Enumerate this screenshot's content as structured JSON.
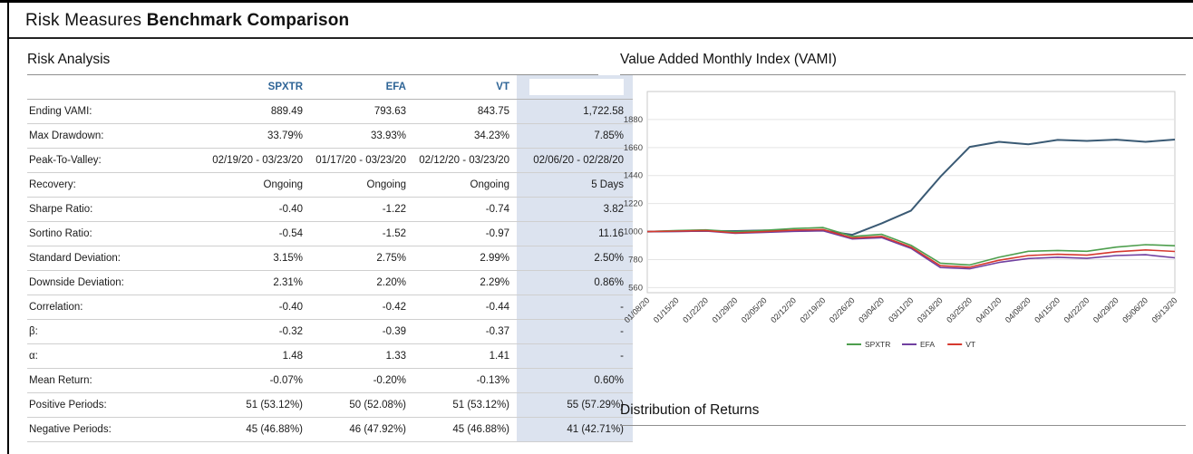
{
  "page": {
    "title_regular": "Risk Measures",
    "title_bold": "Benchmark Comparison"
  },
  "colors": {
    "header_text": "#2e6496",
    "highlight_bg": "#dce3ef",
    "fund_line": "#3a5a74",
    "spxtr_line": "#4d9e4d",
    "efa_line": "#7040a0",
    "vt_line": "#d6392f"
  },
  "risk_analysis": {
    "heading": "Risk Analysis",
    "columns": [
      "SPXTR",
      "EFA",
      "VT",
      ""
    ],
    "rows": [
      {
        "label": "Ending VAMI:",
        "values": [
          "889.49",
          "793.63",
          "843.75",
          "1,722.58"
        ]
      },
      {
        "label": "Max Drawdown:",
        "values": [
          "33.79%",
          "33.93%",
          "34.23%",
          "7.85%"
        ]
      },
      {
        "label": "Peak-To-Valley:",
        "values": [
          "02/19/20 - 03/23/20",
          "01/17/20 - 03/23/20",
          "02/12/20 - 03/23/20",
          "02/06/20 - 02/28/20"
        ]
      },
      {
        "label": "Recovery:",
        "values": [
          "Ongoing",
          "Ongoing",
          "Ongoing",
          "5 Days"
        ]
      },
      {
        "label": "Sharpe Ratio:",
        "values": [
          "-0.40",
          "-1.22",
          "-0.74",
          "3.82"
        ]
      },
      {
        "label": "Sortino Ratio:",
        "values": [
          "-0.54",
          "-1.52",
          "-0.97",
          "11.16"
        ]
      },
      {
        "label": "Standard Deviation:",
        "values": [
          "3.15%",
          "2.75%",
          "2.99%",
          "2.50%"
        ]
      },
      {
        "label": "Downside Deviation:",
        "values": [
          "2.31%",
          "2.20%",
          "2.29%",
          "0.86%"
        ]
      },
      {
        "label": "Correlation:",
        "values": [
          "-0.40",
          "-0.42",
          "-0.44",
          "-"
        ]
      },
      {
        "label": "β:",
        "values": [
          "-0.32",
          "-0.39",
          "-0.37",
          "-"
        ]
      },
      {
        "label": "α:",
        "values": [
          "1.48",
          "1.33",
          "1.41",
          "-"
        ]
      },
      {
        "label": "Mean Return:",
        "values": [
          "-0.07%",
          "-0.20%",
          "-0.13%",
          "0.60%"
        ]
      },
      {
        "label": "Positive Periods:",
        "values": [
          "51 (53.12%)",
          "50 (52.08%)",
          "51 (53.12%)",
          "55 (57.29%)"
        ]
      },
      {
        "label": "Negative Periods:",
        "values": [
          "45 (46.88%)",
          "46 (47.92%)",
          "45 (46.88%)",
          "41 (42.71%)"
        ]
      }
    ]
  },
  "vami": {
    "heading": "Value Added Monthly Index (VAMI)"
  },
  "distribution": {
    "heading": "Distribution of Returns"
  },
  "chart_data": {
    "type": "line",
    "title": "Value Added Monthly Index (VAMI)",
    "x": [
      "01/08/20",
      "01/15/20",
      "01/22/20",
      "01/29/20",
      "02/05/20",
      "02/12/20",
      "02/19/20",
      "02/26/20",
      "03/04/20",
      "03/11/20",
      "03/18/20",
      "03/25/20",
      "04/01/20",
      "04/08/20",
      "04/15/20",
      "04/22/20",
      "04/29/20",
      "05/06/20",
      "05/13/20"
    ],
    "ylim": [
      520,
      2100
    ],
    "yticks": [
      560,
      780,
      1000,
      1220,
      1440,
      1660,
      1880
    ],
    "grid": true,
    "legend_position": "bottom",
    "series": [
      {
        "name": "",
        "color": "#3a5a74",
        "width": 2,
        "in_legend": false,
        "values": [
          1000,
          1003,
          1005,
          1004,
          1010,
          1006,
          1008,
          975,
          1065,
          1165,
          1430,
          1665,
          1705,
          1685,
          1720,
          1712,
          1722,
          1705,
          1723
        ]
      },
      {
        "name": "SPXTR",
        "color": "#4d9e4d",
        "width": 1.6,
        "values": [
          1000,
          1008,
          1013,
          998,
          1010,
          1024,
          1032,
          962,
          978,
          892,
          752,
          738,
          798,
          845,
          852,
          845,
          878,
          897,
          889
        ]
      },
      {
        "name": "EFA",
        "color": "#7040a0",
        "width": 1.6,
        "values": [
          1000,
          1001,
          1004,
          986,
          993,
          1002,
          1006,
          942,
          952,
          868,
          718,
          708,
          758,
          788,
          798,
          790,
          812,
          818,
          794
        ]
      },
      {
        "name": "VT",
        "color": "#d6392f",
        "width": 1.6,
        "values": [
          1000,
          1004,
          1008,
          990,
          1000,
          1012,
          1016,
          950,
          962,
          878,
          732,
          720,
          775,
          812,
          822,
          815,
          842,
          856,
          844
        ]
      }
    ]
  }
}
